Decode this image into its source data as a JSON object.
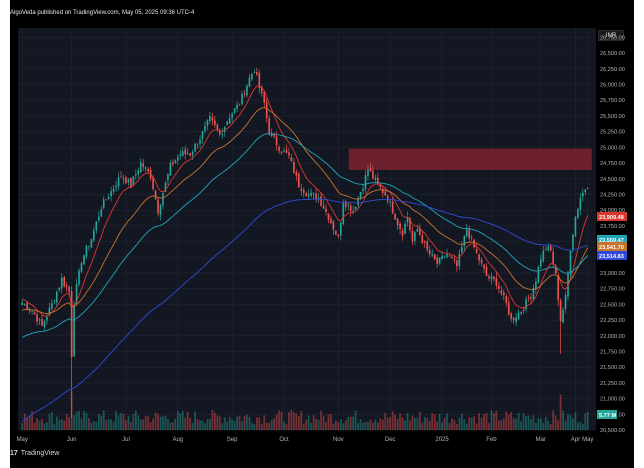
{
  "header": {
    "publisher": "AlgoVeda published on TradingView.com, May 05, 2025 09:36 UTC-4"
  },
  "footer": {
    "logo_mark": "17",
    "logo_text": "TradingView"
  },
  "currency": "INR",
  "colors": {
    "background": "#131722",
    "grid": "#232632",
    "up": "#26a69a",
    "down": "#ef5350",
    "ema_red": "#d9382f",
    "ema_orange": "#c8732c",
    "ema_teal": "#22a4b8",
    "ema_blue": "#2f4ad8",
    "zone": "#8b2332",
    "axis_text": "#b2b5be"
  },
  "chart_data": {
    "type": "candlestick",
    "title": "",
    "xlabel": "",
    "ylabel": "",
    "ylim": [
      20500,
      26900
    ],
    "y_ticks": [
      20500,
      20750,
      21000,
      21250,
      21500,
      21750,
      22000,
      22250,
      22500,
      22750,
      23000,
      23250,
      23500,
      23750,
      24000,
      24250,
      24500,
      24750,
      25000,
      25250,
      25500,
      25750,
      26000,
      26250,
      26500,
      26750
    ],
    "y_tick_labels": [
      "20,500.00",
      "20,750.00",
      "21,000.00",
      "21,250.00",
      "21,500.00",
      "21,750.00",
      "22,000.00",
      "22,250.00",
      "22,500.00",
      "22,750.00",
      "23,000.00",
      "23,250.00",
      "23,500.00",
      "23,750.00",
      "24,000.00",
      "24,250.00",
      "24,500.00",
      "24,750.00",
      "25,000.00",
      "25,250.00",
      "25,500.00",
      "25,750.00",
      "26,000.00",
      "26,250.00",
      "26,500.00",
      "26,750.00"
    ],
    "x_ticks": [
      "May",
      "Jun",
      "Jul",
      "Aug",
      "Sep",
      "Oct",
      "Nov",
      "Dec",
      "2025",
      "Feb",
      "Mar",
      "Apr",
      "May"
    ],
    "price_anchors": [
      [
        0,
        22530
      ],
      [
        4,
        22400
      ],
      [
        8,
        22150
      ],
      [
        12,
        22500
      ],
      [
        16,
        22900
      ],
      [
        19,
        22700
      ],
      [
        20,
        21700
      ],
      [
        21,
        22550
      ],
      [
        24,
        23200
      ],
      [
        28,
        23550
      ],
      [
        32,
        24050
      ],
      [
        36,
        24300
      ],
      [
        40,
        24550
      ],
      [
        44,
        24400
      ],
      [
        48,
        24750
      ],
      [
        52,
        24550
      ],
      [
        55,
        24000
      ],
      [
        60,
        24700
      ],
      [
        64,
        24900
      ],
      [
        68,
        24900
      ],
      [
        72,
        25150
      ],
      [
        76,
        25450
      ],
      [
        80,
        25200
      ],
      [
        84,
        25500
      ],
      [
        88,
        25700
      ],
      [
        92,
        26100
      ],
      [
        94,
        26250
      ],
      [
        96,
        25950
      ],
      [
        98,
        25700
      ],
      [
        100,
        25250
      ],
      [
        104,
        25000
      ],
      [
        108,
        24850
      ],
      [
        112,
        24400
      ],
      [
        116,
        24250
      ],
      [
        120,
        24200
      ],
      [
        124,
        23900
      ],
      [
        128,
        23550
      ],
      [
        130,
        24150
      ],
      [
        134,
        24000
      ],
      [
        138,
        24400
      ],
      [
        140,
        24650
      ],
      [
        144,
        24400
      ],
      [
        148,
        24200
      ],
      [
        152,
        23800
      ],
      [
        154,
        23650
      ],
      [
        156,
        23900
      ],
      [
        158,
        23500
      ],
      [
        160,
        23700
      ],
      [
        164,
        23350
      ],
      [
        168,
        23150
      ],
      [
        172,
        23300
      ],
      [
        176,
        23100
      ],
      [
        180,
        23700
      ],
      [
        184,
        23300
      ],
      [
        188,
        22950
      ],
      [
        192,
        22850
      ],
      [
        196,
        22500
      ],
      [
        198,
        22250
      ],
      [
        202,
        22400
      ],
      [
        206,
        22650
      ],
      [
        208,
        22900
      ],
      [
        210,
        23250
      ],
      [
        212,
        23400
      ],
      [
        214,
        23350
      ],
      [
        216,
        22950
      ],
      [
        218,
        22250
      ],
      [
        220,
        22600
      ],
      [
        222,
        23400
      ],
      [
        224,
        23900
      ],
      [
        226,
        24200
      ],
      [
        228,
        24350
      ],
      [
        229,
        24400
      ]
    ],
    "series": [
      {
        "name": "",
        "values_label": "23,909.48",
        "last": 23909.48,
        "color_key": "ema_red"
      },
      {
        "name": "",
        "values_label": "23,559.47",
        "last": 23559.47,
        "color_key": "ema_teal"
      },
      {
        "name": "",
        "values_label": "23,541.70",
        "last": 23541.7,
        "color_key": "ema_orange"
      },
      {
        "name": "",
        "values_label": "23,514.83",
        "last": 23514.83,
        "color_key": "ema_blue"
      }
    ],
    "last_price_label": "",
    "volume_label": "5.77 M",
    "supply_zone": {
      "from_index": 133,
      "to_index": 229,
      "low": 24640,
      "high": 24980
    }
  }
}
